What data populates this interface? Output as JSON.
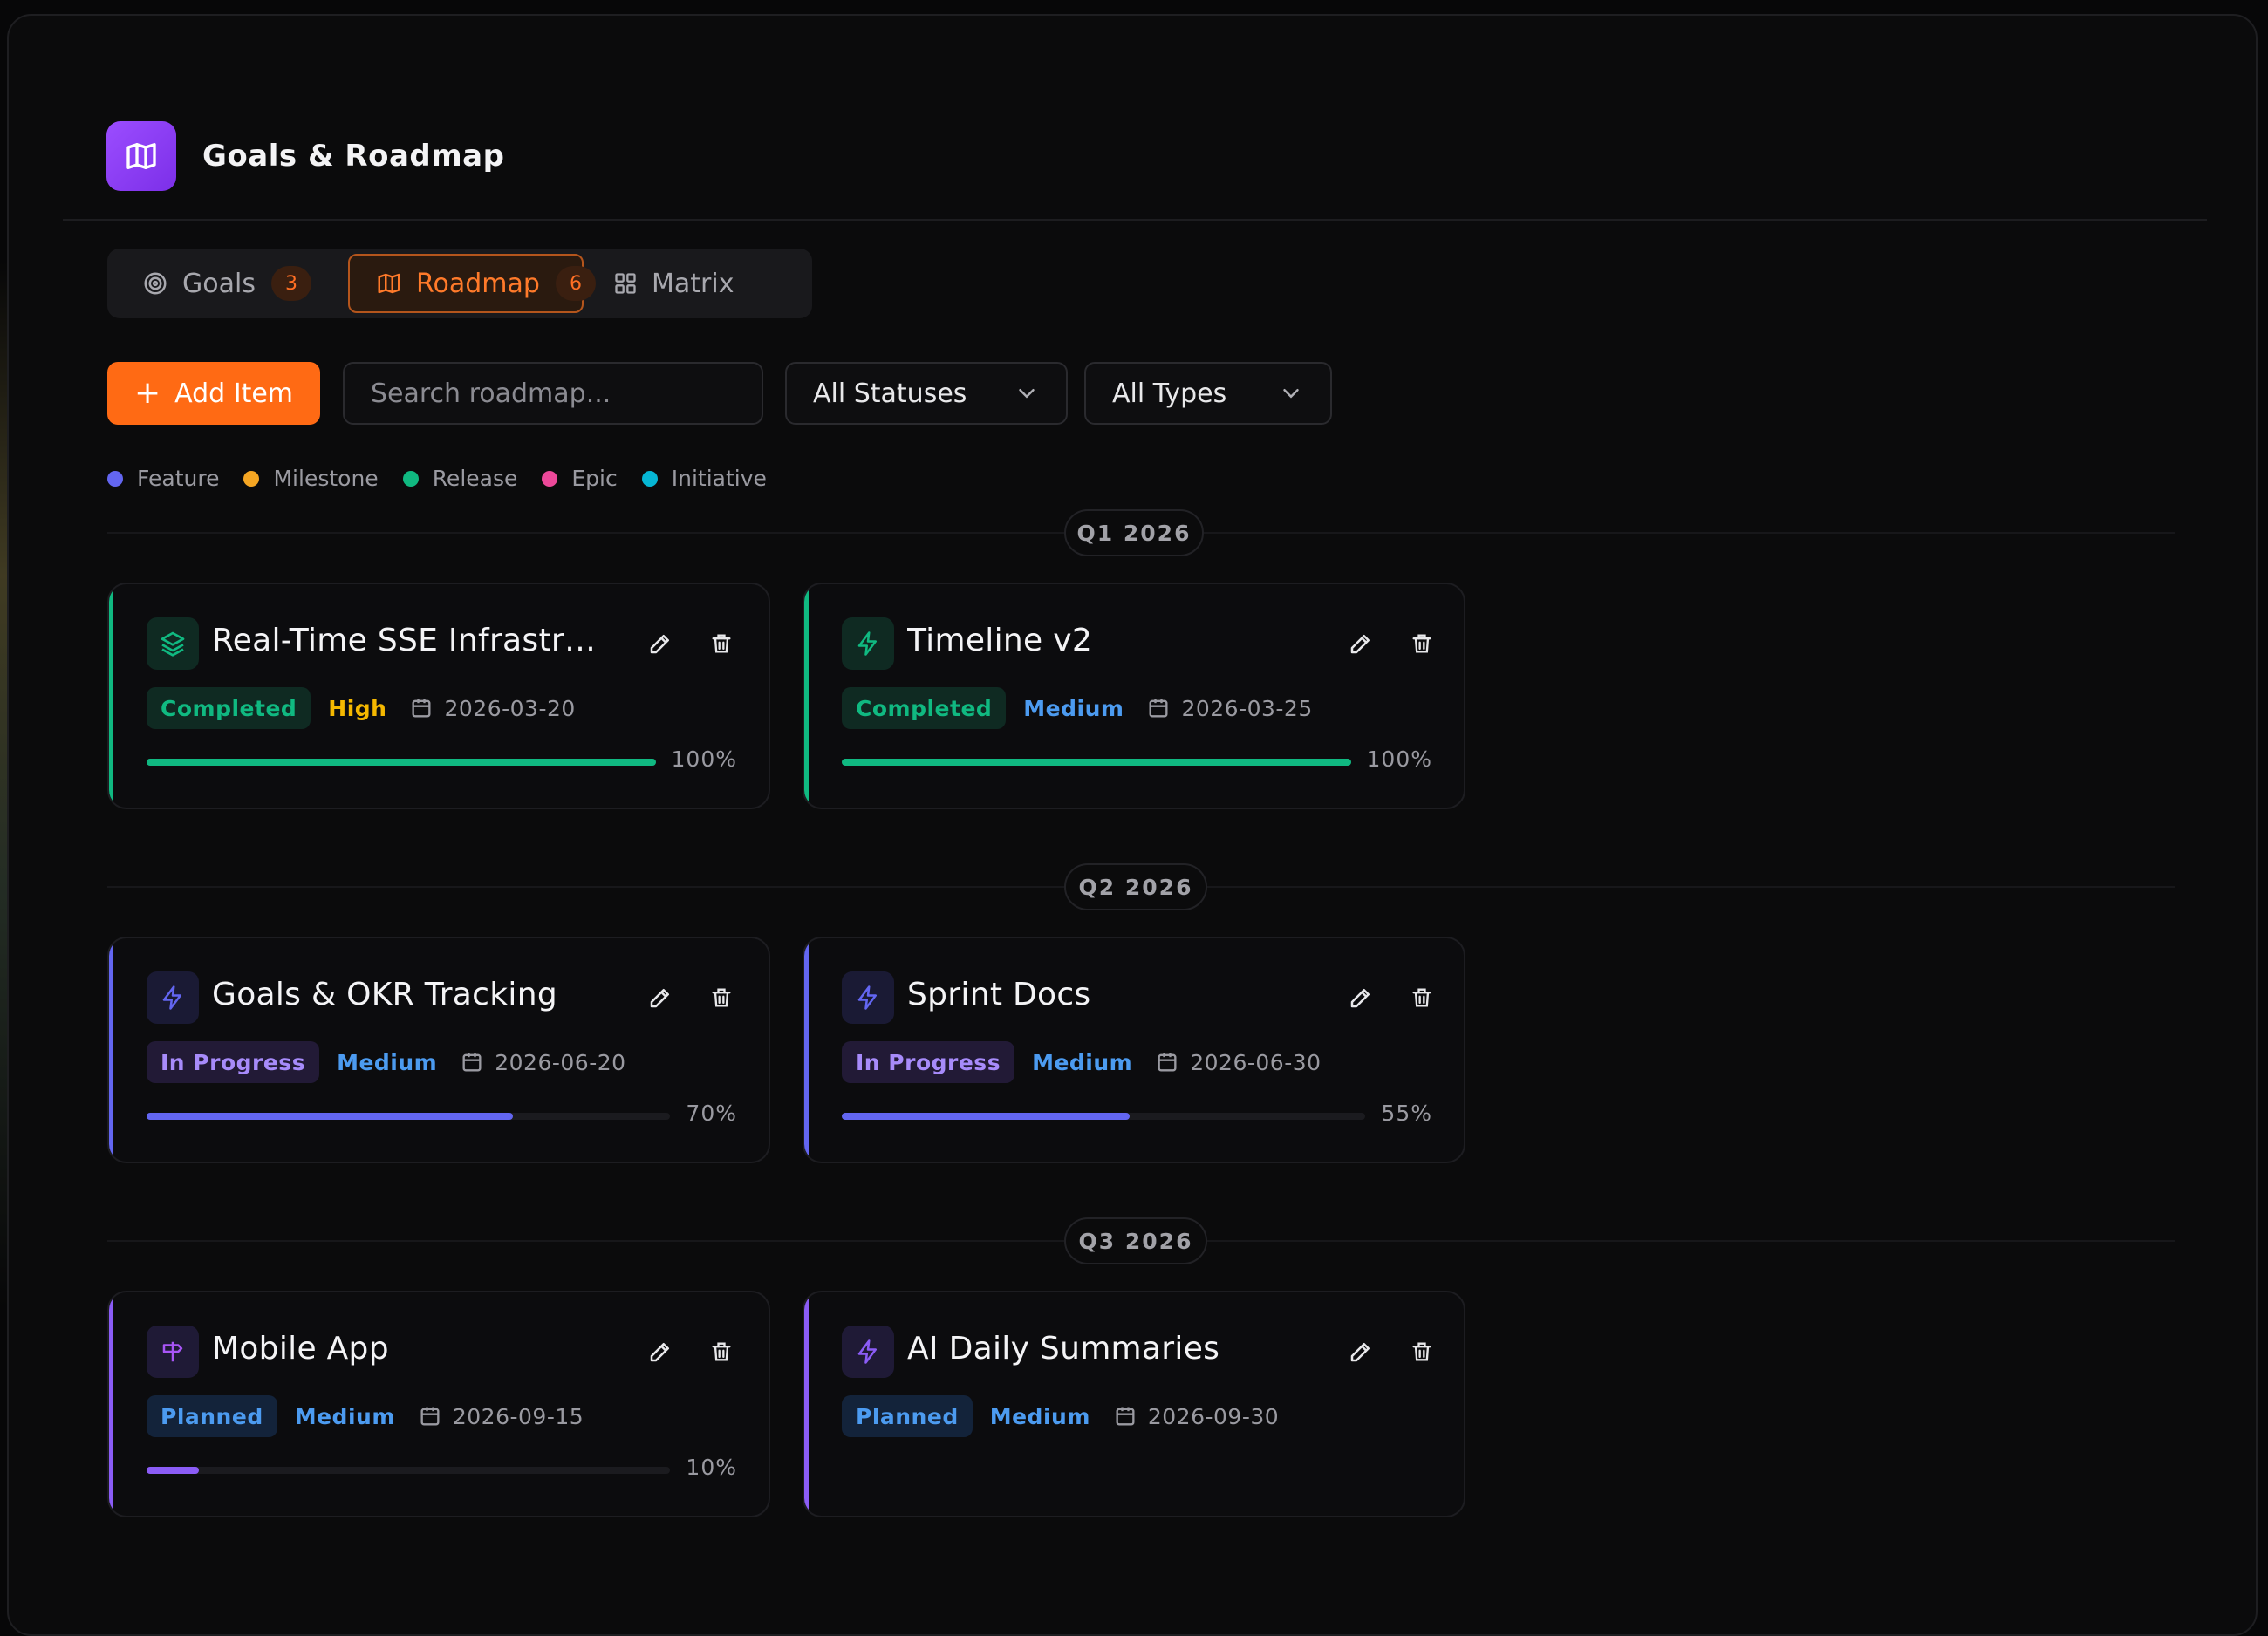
{
  "header": {
    "title": "Goals & Roadmap",
    "icon": "map-icon",
    "icon_color": "#8b3cf7"
  },
  "tabs": [
    {
      "label": "Goals",
      "count": "3",
      "icon": "target-icon",
      "active": false
    },
    {
      "label": "Roadmap",
      "count": "6",
      "icon": "map-icon",
      "active": true
    },
    {
      "label": "Matrix",
      "count": "",
      "icon": "grid-icon",
      "active": false
    }
  ],
  "toolbar": {
    "add_label": "Add Item",
    "search_placeholder": "Search roadmap...",
    "search_value": "",
    "status_filter": "All Statuses",
    "type_filter": "All Types"
  },
  "legend": [
    {
      "label": "Feature",
      "color": "#6366f1"
    },
    {
      "label": "Milestone",
      "color": "#f5a623"
    },
    {
      "label": "Release",
      "color": "#10b981"
    },
    {
      "label": "Epic",
      "color": "#ec4899"
    },
    {
      "label": "Initiative",
      "color": "#06b6d4"
    }
  ],
  "quarters": [
    {
      "label": "Q1 2026",
      "items": [
        {
          "title": "Real-Time SSE Infrastructure",
          "status": "Completed",
          "priority": "High",
          "date": "2026-03-20",
          "progress": 100,
          "progress_label": "100%",
          "type_icon": "layers-icon",
          "accent": "#10b981"
        },
        {
          "title": "Timeline v2",
          "status": "Completed",
          "priority": "Medium",
          "date": "2026-03-25",
          "progress": 100,
          "progress_label": "100%",
          "type_icon": "zap-icon",
          "accent": "#10b981"
        }
      ]
    },
    {
      "label": "Q2 2026",
      "items": [
        {
          "title": "Goals & OKR Tracking",
          "status": "In Progress",
          "priority": "Medium",
          "date": "2026-06-20",
          "progress": 70,
          "progress_label": "70%",
          "type_icon": "zap-icon",
          "accent": "#6366f1"
        },
        {
          "title": "Sprint Docs",
          "status": "In Progress",
          "priority": "Medium",
          "date": "2026-06-30",
          "progress": 55,
          "progress_label": "55%",
          "type_icon": "zap-icon",
          "accent": "#6366f1"
        }
      ]
    },
    {
      "label": "Q3 2026",
      "items": [
        {
          "title": "Mobile App",
          "status": "Planned",
          "priority": "Medium",
          "date": "2026-09-15",
          "progress": 10,
          "progress_label": "10%",
          "type_icon": "signpost-icon",
          "accent": "#8b5cf6"
        },
        {
          "title": "AI Daily Summaries",
          "status": "Planned",
          "priority": "Medium",
          "date": "2026-09-30",
          "progress": null,
          "progress_label": "",
          "type_icon": "zap-icon",
          "accent": "#8b5cf6"
        }
      ]
    }
  ]
}
